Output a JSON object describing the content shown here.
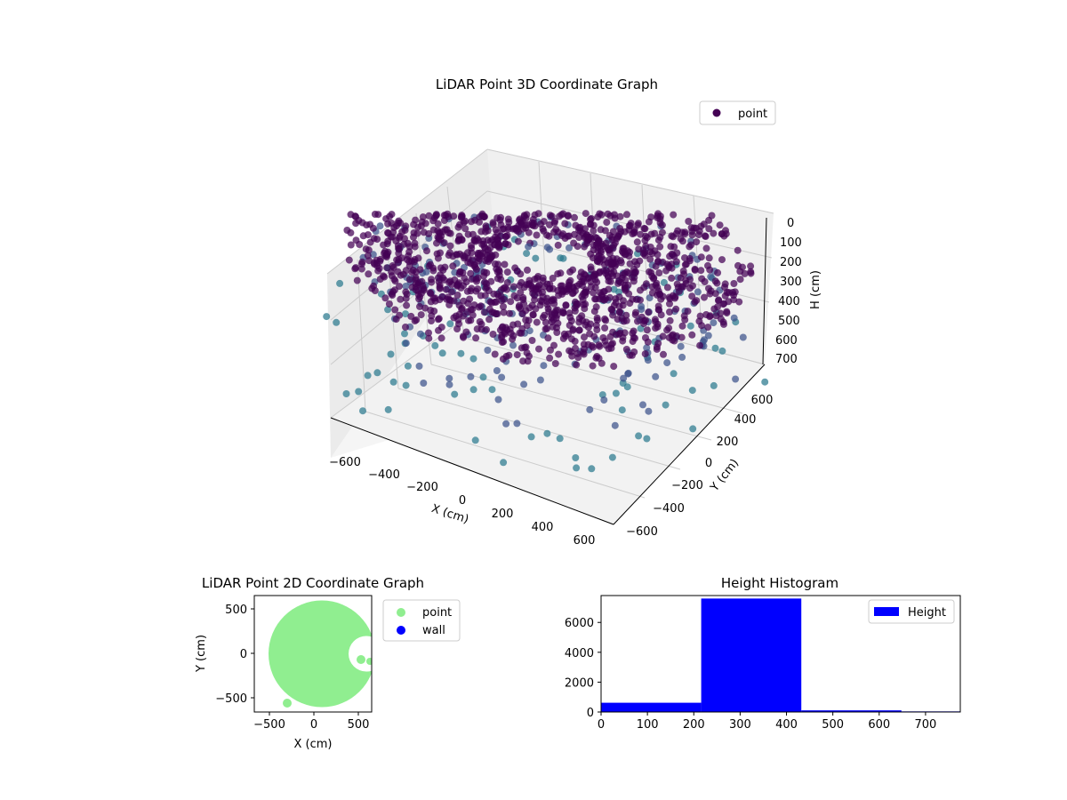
{
  "chart_data": [
    {
      "type": "scatter3d",
      "title": "LiDAR Point 3D Coordinate Graph",
      "xlabel": "X (cm)",
      "ylabel": "Y (cm)",
      "zlabel": "H (cm)",
      "x_ticks": [
        "−600",
        "−400",
        "−200",
        "0",
        "200",
        "400",
        "600"
      ],
      "y_ticks": [
        "−600",
        "−400",
        "−200",
        "0",
        "200",
        "400",
        "600"
      ],
      "z_ticks": [
        "0",
        "100",
        "200",
        "300",
        "400",
        "500",
        "600",
        "700"
      ],
      "xlim": [
        -700,
        700
      ],
      "ylim": [
        -700,
        700
      ],
      "zlim": [
        0,
        750
      ],
      "z_inverted": true,
      "grid": true,
      "legend": {
        "position": "top-right",
        "entries": [
          {
            "label": "point",
            "color": "#440154"
          }
        ]
      },
      "colors": {
        "low": "#2a788e",
        "mid": "#3b528b",
        "high": "#440154"
      },
      "series": [
        {
          "name": "point",
          "description_rings": [
            {
              "height": 300,
              "radius_min": 150,
              "radius_max": 650,
              "count": 1400
            },
            {
              "height": 400,
              "radius_min": 200,
              "radius_max": 600,
              "count": 300
            },
            {
              "height": 600,
              "radius_min": 300,
              "radius_max": 650,
              "count": 60
            }
          ]
        }
      ]
    },
    {
      "type": "scatter",
      "title": "LiDAR Point 2D Coordinate Graph",
      "xlabel": "X (cm)",
      "ylabel": "Y (cm)",
      "x_ticks": [
        "−500",
        "0",
        "500"
      ],
      "y_ticks": [
        "500",
        "0",
        "−500"
      ],
      "xlim": [
        -660,
        660
      ],
      "ylim": [
        -660,
        660
      ],
      "legend": {
        "position": "outside-right",
        "entries": [
          {
            "label": "point",
            "color": "#90ee90"
          },
          {
            "label": "wall",
            "color": "#0000ff"
          }
        ]
      },
      "series": [
        {
          "name": "point",
          "color": "#90ee90",
          "shape": "disc",
          "center": [
            100,
            0
          ],
          "radius": 600,
          "notch_center": [
            600,
            0
          ],
          "notch_radius": 200
        },
        {
          "name": "wall",
          "color": "#0000ff",
          "values": []
        }
      ]
    },
    {
      "type": "bar",
      "title": "Height Histogram",
      "x_ticks": [
        "0",
        "100",
        "200",
        "300",
        "400",
        "500",
        "600",
        "700"
      ],
      "y_ticks": [
        "0",
        "2000",
        "4000",
        "6000"
      ],
      "xlim": [
        0,
        775
      ],
      "ylim": [
        0,
        7800
      ],
      "legend": {
        "position": "top-right",
        "entries": [
          {
            "label": "Height",
            "color": "#0000ff"
          }
        ]
      },
      "series": [
        {
          "name": "Height",
          "color": "#0000ff",
          "bins": [
            [
              0,
              216,
              620
            ],
            [
              216,
              432,
              7600
            ],
            [
              432,
              648,
              110
            ],
            [
              648,
              775,
              40
            ]
          ]
        }
      ]
    }
  ]
}
